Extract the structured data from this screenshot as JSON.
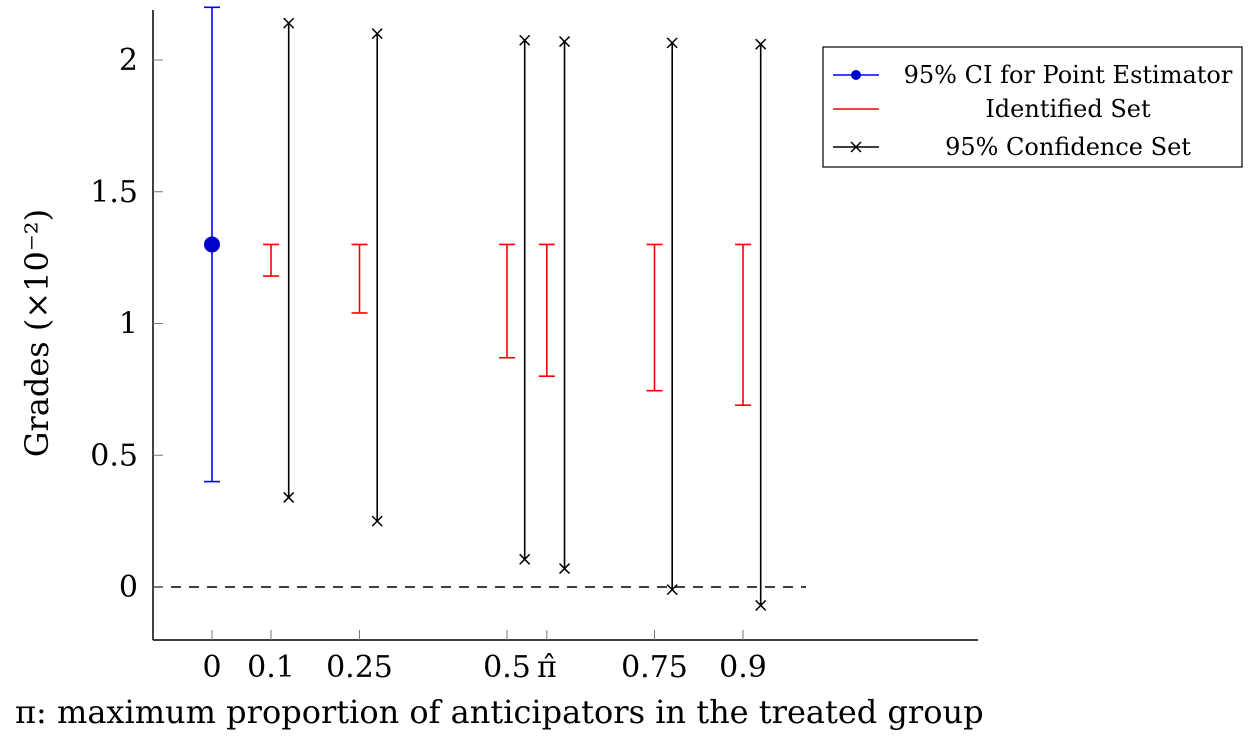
{
  "chart_data": {
    "type": "errorbar",
    "xlabel": "π: maximum proportion of anticipators in the treated group",
    "ylabel": "Grades (×10⁻²)",
    "ylim": [
      -0.2,
      2.2
    ],
    "xlim": [
      -0.2,
      2.6
    ],
    "x_tick_positions": [
      0,
      0.2,
      0.5,
      1.0,
      1.135,
      1.5,
      1.8
    ],
    "x_tick_labels": [
      "0",
      "0.1",
      "0.25",
      "0.5",
      "π̂",
      "0.75",
      "0.9"
    ],
    "y_ticks": [
      0,
      0.5,
      1,
      1.5,
      2
    ],
    "y_tick_labels": [
      "0",
      "0.5",
      "1",
      "1.5",
      "2"
    ],
    "reference_line": {
      "y": 0,
      "style": "dashed"
    },
    "legend": {
      "position": "top-right",
      "entries": [
        "95% CI for Point Estimator",
        "Identified Set",
        "95% Confidence Set"
      ]
    },
    "series": [
      {
        "name": "95% CI for Point Estimator",
        "color": "#0000ff",
        "points": [
          {
            "x": 0,
            "y": 1.3,
            "low": 0.4,
            "high": 2.2
          }
        ]
      },
      {
        "name": "Identified Set",
        "color": "#ff0000",
        "points": [
          {
            "x": 0.2,
            "low": 1.18,
            "high": 1.3
          },
          {
            "x": 0.5,
            "low": 1.04,
            "high": 1.3
          },
          {
            "x": 1.0,
            "low": 0.87,
            "high": 1.3
          },
          {
            "x": 1.135,
            "low": 0.8,
            "high": 1.3
          },
          {
            "x": 1.5,
            "low": 0.745,
            "high": 1.3
          },
          {
            "x": 1.8,
            "low": 0.69,
            "high": 1.3
          }
        ]
      },
      {
        "name": "95% Confidence Set",
        "color": "#000000",
        "points": [
          {
            "x": 0.26,
            "low": 0.34,
            "high": 2.14
          },
          {
            "x": 0.56,
            "low": 0.25,
            "high": 2.1
          },
          {
            "x": 1.06,
            "low": 0.105,
            "high": 2.075
          },
          {
            "x": 1.195,
            "low": 0.07,
            "high": 2.07
          },
          {
            "x": 1.56,
            "low": -0.01,
            "high": 2.065
          },
          {
            "x": 1.86,
            "low": -0.07,
            "high": 2.06
          }
        ]
      }
    ]
  }
}
